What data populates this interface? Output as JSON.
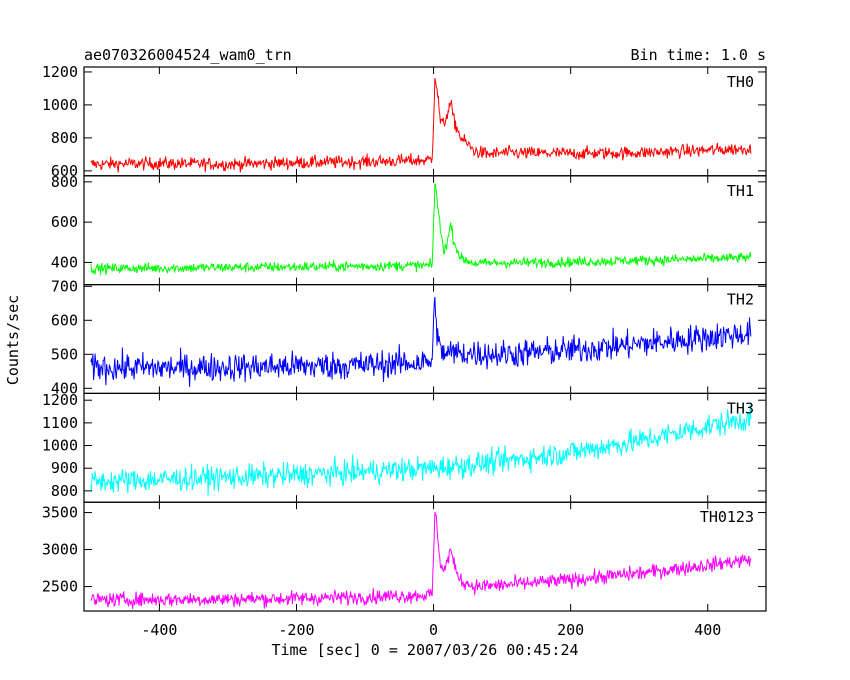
{
  "header": {
    "title": "ae070326004524_wam0_trn",
    "bin_time": "Bin time: 1.0 s"
  },
  "axes": {
    "xlabel": "Time [sec] 0 = 2007/03/26 00:45:24",
    "ylabel": "Counts/sec",
    "xlim": [
      -510,
      485
    ],
    "xticks": [
      -400,
      -200,
      0,
      200,
      400
    ]
  },
  "chart_data": {
    "type": "line",
    "title": "ae070326004524_wam0_trn",
    "xlabel": "Time [sec] 0 = 2007/03/26 00:45:24",
    "ylabel": "Counts/sec",
    "x_range": [
      -500,
      463
    ],
    "bin_time_s": 1.0,
    "panels": [
      {
        "name": "TH0",
        "color": "#ff0000",
        "ylim": [
          570,
          1230
        ],
        "yticks": [
          600,
          800,
          1000,
          1200
        ],
        "points": [
          [
            -500,
            640
          ],
          [
            -400,
            645
          ],
          [
            -300,
            640
          ],
          [
            -200,
            650
          ],
          [
            -100,
            655
          ],
          [
            -10,
            665
          ],
          [
            -2,
            670
          ],
          [
            2,
            1180
          ],
          [
            5,
            1100
          ],
          [
            10,
            900
          ],
          [
            15,
            880
          ],
          [
            20,
            950
          ],
          [
            25,
            1010
          ],
          [
            30,
            900
          ],
          [
            40,
            800
          ],
          [
            60,
            720
          ],
          [
            80,
            700
          ],
          [
            100,
            710
          ],
          [
            200,
            705
          ],
          [
            300,
            710
          ],
          [
            400,
            725
          ],
          [
            463,
            735
          ]
        ],
        "noise": 28
      },
      {
        "name": "TH1",
        "color": "#00ff00",
        "ylim": [
          290,
          830
        ],
        "yticks": [
          400,
          600,
          800
        ],
        "points": [
          [
            -500,
            370
          ],
          [
            -400,
            372
          ],
          [
            -300,
            375
          ],
          [
            -200,
            378
          ],
          [
            -100,
            382
          ],
          [
            -2,
            385
          ],
          [
            2,
            800
          ],
          [
            5,
            720
          ],
          [
            10,
            560
          ],
          [
            15,
            460
          ],
          [
            20,
            500
          ],
          [
            25,
            590
          ],
          [
            30,
            500
          ],
          [
            40,
            420
          ],
          [
            60,
            395
          ],
          [
            100,
            398
          ],
          [
            200,
            402
          ],
          [
            300,
            410
          ],
          [
            400,
            418
          ],
          [
            463,
            425
          ]
        ],
        "noise": 18
      },
      {
        "name": "TH2",
        "color": "#0000ff",
        "ylim": [
          385,
          705
        ],
        "yticks": [
          400,
          500,
          600,
          700
        ],
        "points": [
          [
            -500,
            462
          ],
          [
            -400,
            460
          ],
          [
            -300,
            462
          ],
          [
            -200,
            465
          ],
          [
            -100,
            468
          ],
          [
            -2,
            478
          ],
          [
            2,
            680
          ],
          [
            5,
            570
          ],
          [
            10,
            505
          ],
          [
            100,
            500
          ],
          [
            200,
            512
          ],
          [
            300,
            530
          ],
          [
            400,
            550
          ],
          [
            463,
            562
          ]
        ],
        "noise": 30
      },
      {
        "name": "TH3",
        "color": "#00ffff",
        "ylim": [
          750,
          1230
        ],
        "yticks": [
          800,
          900,
          1000,
          1100,
          1200
        ],
        "points": [
          [
            -500,
            840
          ],
          [
            -400,
            850
          ],
          [
            -300,
            860
          ],
          [
            -200,
            870
          ],
          [
            -100,
            885
          ],
          [
            0,
            900
          ],
          [
            100,
            930
          ],
          [
            200,
            970
          ],
          [
            300,
            1020
          ],
          [
            400,
            1085
          ],
          [
            463,
            1120
          ]
        ],
        "noise": 38
      },
      {
        "name": "TH0123",
        "color": "#ff00ff",
        "ylim": [
          2170,
          3640
        ],
        "yticks": [
          2500,
          3000,
          3500
        ],
        "points": [
          [
            -500,
            2320
          ],
          [
            -400,
            2325
          ],
          [
            -300,
            2330
          ],
          [
            -200,
            2340
          ],
          [
            -100,
            2360
          ],
          [
            -2,
            2390
          ],
          [
            2,
            3500
          ],
          [
            5,
            3300
          ],
          [
            10,
            2820
          ],
          [
            15,
            2700
          ],
          [
            20,
            2850
          ],
          [
            25,
            3000
          ],
          [
            30,
            2780
          ],
          [
            40,
            2580
          ],
          [
            60,
            2500
          ],
          [
            100,
            2520
          ],
          [
            200,
            2590
          ],
          [
            300,
            2680
          ],
          [
            400,
            2790
          ],
          [
            463,
            2870
          ]
        ],
        "noise": 70
      }
    ]
  }
}
